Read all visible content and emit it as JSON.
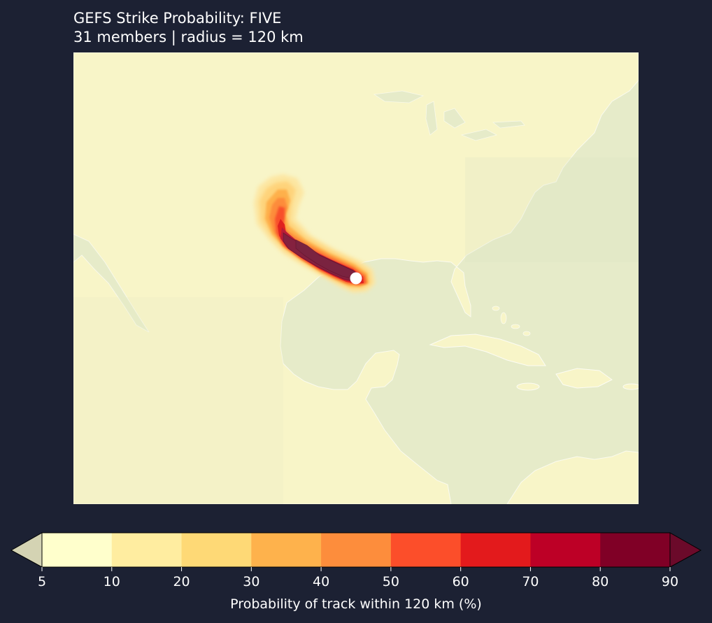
{
  "map": {
    "title": "GEFS Strike Probability: FIVE",
    "subtitle": "31 members  |  radius = 120 km",
    "storm": "FIVE",
    "ensemble": "GEFS",
    "member_count": 31,
    "radius_km": 120,
    "region": "Gulf of Mexico / Southern United States",
    "center_marker": "white-dot",
    "land_color": "#f8f5c8",
    "ocean_color": "#e6ebc9",
    "coastline_color": "#ffffff"
  },
  "colorbar": {
    "label": "Probability of track within 120 km (%)",
    "ticks": [
      "5",
      "10",
      "20",
      "30",
      "40",
      "50",
      "60",
      "70",
      "80",
      "90"
    ],
    "levels": [
      5,
      10,
      20,
      30,
      40,
      50,
      60,
      70,
      80,
      90
    ],
    "colors": [
      "#ffffcc",
      "#ffeda0",
      "#fed976",
      "#feb24c",
      "#fd8d3c",
      "#fc4e2a",
      "#e31a1c",
      "#bd0026",
      "#800026"
    ],
    "under_color": "#d4d3b3",
    "over_color": "#6b0a2a",
    "extend": "both"
  }
}
